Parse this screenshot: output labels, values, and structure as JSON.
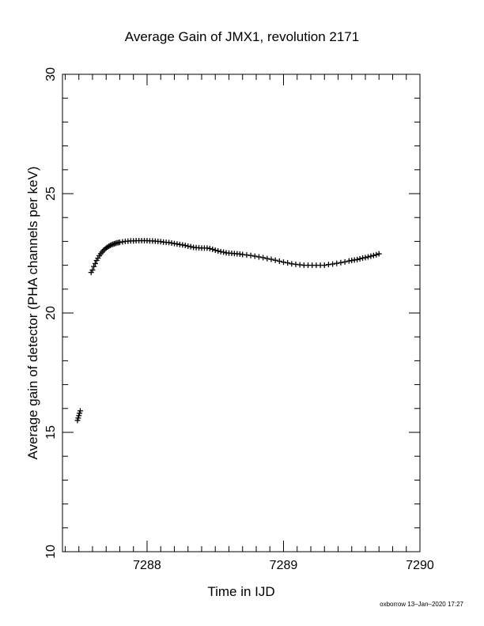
{
  "chart_data": {
    "type": "scatter",
    "title": "Average Gain of JMX1, revolution 2171",
    "xlabel": "Time in IJD",
    "ylabel": "Average gain of detector (PHA channels per keV)",
    "xlim": [
      7287.38,
      7290.0
    ],
    "ylim": [
      10,
      30
    ],
    "xticks": [
      "7288",
      "7289",
      "7290"
    ],
    "yticks": [
      "10",
      "15",
      "20",
      "25",
      "30"
    ],
    "grid": false,
    "marker": "plus",
    "series": [
      {
        "x": [
          7287.49,
          7287.495,
          7287.5,
          7287.505,
          7287.51,
          7287.59,
          7287.6,
          7287.61,
          7287.62,
          7287.63,
          7287.64,
          7287.65,
          7287.66,
          7287.67,
          7287.68,
          7287.69,
          7287.7,
          7287.71,
          7287.72,
          7287.73,
          7287.74,
          7287.75,
          7287.76,
          7287.77,
          7287.78,
          7287.79,
          7287.8,
          7287.82,
          7287.84,
          7287.86,
          7287.88,
          7287.9,
          7287.92,
          7287.94,
          7287.96,
          7287.98,
          7288.0,
          7288.02,
          7288.04,
          7288.06,
          7288.08,
          7288.1,
          7288.12,
          7288.14,
          7288.16,
          7288.18,
          7288.2,
          7288.22,
          7288.24,
          7288.26,
          7288.28,
          7288.3,
          7288.32,
          7288.34,
          7288.36,
          7288.38,
          7288.4,
          7288.42,
          7288.44,
          7288.46,
          7288.48,
          7288.5,
          7288.52,
          7288.54,
          7288.56,
          7288.58,
          7288.6,
          7288.62,
          7288.64,
          7288.66,
          7288.68,
          7288.7,
          7288.73,
          7288.76,
          7288.79,
          7288.82,
          7288.85,
          7288.88,
          7288.91,
          7288.94,
          7288.97,
          7289.0,
          7289.03,
          7289.06,
          7289.09,
          7289.12,
          7289.15,
          7289.18,
          7289.21,
          7289.24,
          7289.27,
          7289.3,
          7289.33,
          7289.36,
          7289.39,
          7289.42,
          7289.45,
          7289.48,
          7289.5,
          7289.52,
          7289.54,
          7289.56,
          7289.58,
          7289.6,
          7289.62,
          7289.64,
          7289.66,
          7289.68,
          7289.7
        ],
        "y": [
          15.5,
          15.6,
          15.7,
          15.8,
          15.9,
          21.7,
          21.8,
          21.95,
          22.07,
          22.2,
          22.3,
          22.4,
          22.48,
          22.55,
          22.62,
          22.67,
          22.72,
          22.76,
          22.8,
          22.83,
          22.86,
          22.88,
          22.9,
          22.92,
          22.94,
          22.95,
          22.96,
          22.98,
          23.0,
          23.01,
          23.02,
          23.02,
          23.03,
          23.03,
          23.03,
          23.03,
          23.03,
          23.02,
          23.02,
          23.01,
          23.0,
          22.99,
          22.97,
          22.96,
          22.95,
          22.93,
          22.91,
          22.89,
          22.87,
          22.85,
          22.83,
          22.8,
          22.78,
          22.75,
          22.74,
          22.73,
          22.72,
          22.72,
          22.72,
          22.7,
          22.67,
          22.63,
          22.6,
          22.57,
          22.55,
          22.52,
          22.51,
          22.5,
          22.49,
          22.48,
          22.47,
          22.45,
          22.43,
          22.41,
          22.38,
          22.35,
          22.32,
          22.28,
          22.25,
          22.21,
          22.17,
          22.13,
          22.1,
          22.06,
          22.04,
          22.02,
          22.0,
          22.0,
          22.0,
          22.0,
          22.0,
          22.0,
          22.03,
          22.05,
          22.08,
          22.11,
          22.14,
          22.18,
          22.2,
          22.22,
          22.24,
          22.27,
          22.3,
          22.32,
          22.35,
          22.38,
          22.41,
          22.44,
          22.48
        ]
      }
    ]
  },
  "footer": {
    "stamp": "oxborrow 13–Jan–2020 17:27"
  }
}
